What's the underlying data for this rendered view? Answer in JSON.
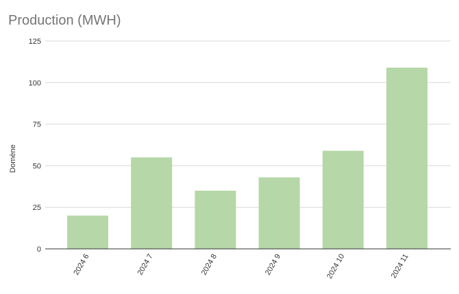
{
  "chart_data": {
    "type": "bar",
    "title": "Production (MWH)",
    "xlabel": "",
    "ylabel": "Domène",
    "categories": [
      "2024 6",
      "2024 7",
      "2024 8",
      "2024 9",
      "2024 10",
      "2024 11"
    ],
    "values": [
      20,
      55,
      35,
      43,
      59,
      109
    ],
    "ylim": [
      0,
      125
    ],
    "yticks": [
      0,
      25,
      50,
      75,
      100,
      125
    ],
    "grid": true,
    "legend": "none",
    "bar_color": "#b6d7a8"
  }
}
